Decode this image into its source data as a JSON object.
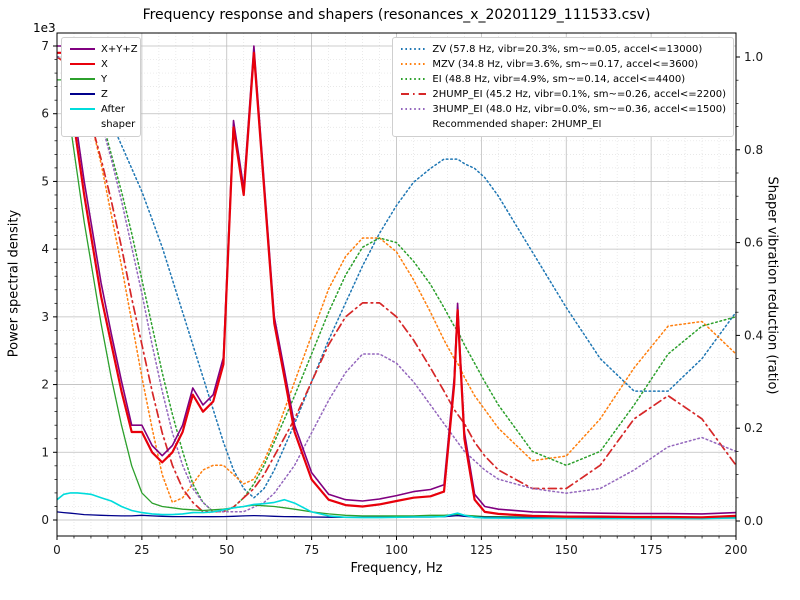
{
  "chart_data": {
    "type": "line",
    "title": "Frequency response and shapers (resonances_x_20201129_111533.csv)",
    "xlabel": "Frequency, Hz",
    "ylabel_left": "Power spectral density",
    "ylabel_right": "Shaper vibration reduction (ratio)",
    "y_offset_text": "1e3",
    "xlim": [
      0,
      200
    ],
    "ylim_left": [
      0,
      7000
    ],
    "ylim_right": [
      0,
      1.0
    ],
    "x_ticks": [
      0,
      25,
      50,
      75,
      100,
      125,
      150,
      175,
      200
    ],
    "y_ticks_left": [
      0,
      1,
      2,
      3,
      4,
      5,
      6,
      7
    ],
    "y_ticks_right": [
      0.0,
      0.2,
      0.4,
      0.6,
      0.8,
      1.0
    ],
    "x_major_step": 25,
    "x_minor_step": 5,
    "y_left_minor_step": 200,
    "y_right_minor_step": 0.05,
    "grid": "major+minor",
    "legend_position_left": "upper left",
    "legend_position_right": "upper right",
    "legend_note": "Recommended shaper: 2HUMP_EI",
    "x": [
      0,
      2,
      4,
      6,
      8,
      10,
      13,
      16,
      19,
      22,
      25,
      28,
      31,
      34,
      37,
      40,
      43,
      46,
      49,
      52,
      55,
      58,
      61,
      64,
      67,
      70,
      75,
      80,
      85,
      90,
      95,
      100,
      105,
      110,
      114,
      117,
      118,
      120,
      123,
      126,
      130,
      140,
      150,
      160,
      170,
      180,
      190,
      200
    ],
    "psd_series": [
      {
        "name": "X+Y+Z",
        "color": "#800080",
        "style": "solid",
        "width": 1.6,
        "axis": "left",
        "values": [
          7000,
          7000,
          6400,
          5700,
          5000,
          4400,
          3500,
          2750,
          2050,
          1400,
          1400,
          1100,
          950,
          1100,
          1400,
          1950,
          1700,
          1850,
          2400,
          5900,
          4900,
          7000,
          5000,
          3000,
          2200,
          1400,
          700,
          380,
          300,
          280,
          310,
          360,
          420,
          450,
          520,
          2100,
          3200,
          1300,
          380,
          200,
          160,
          120,
          110,
          100,
          95,
          95,
          90,
          110
        ]
      },
      {
        "name": "X",
        "color": "#e8000b",
        "style": "solid",
        "width": 2.2,
        "axis": "left",
        "values": [
          6900,
          6900,
          6200,
          5500,
          4800,
          4200,
          3300,
          2600,
          1900,
          1300,
          1300,
          1000,
          850,
          1000,
          1300,
          1850,
          1600,
          1750,
          2300,
          5800,
          4800,
          6900,
          4900,
          2900,
          2100,
          1300,
          600,
          300,
          220,
          200,
          230,
          280,
          330,
          350,
          420,
          2000,
          3100,
          1200,
          300,
          120,
          90,
          60,
          50,
          50,
          45,
          45,
          40,
          60
        ]
      },
      {
        "name": "Y",
        "color": "#2ca02c",
        "style": "solid",
        "width": 1.3,
        "axis": "left",
        "values": [
          6500,
          6500,
          5800,
          5100,
          4400,
          3800,
          2900,
          2100,
          1400,
          800,
          400,
          250,
          200,
          180,
          160,
          150,
          140,
          150,
          160,
          180,
          200,
          220,
          210,
          200,
          180,
          160,
          120,
          90,
          70,
          60,
          60,
          60,
          60,
          70,
          70,
          80,
          80,
          70,
          60,
          50,
          50,
          45,
          40,
          35,
          35,
          35,
          35,
          35
        ]
      },
      {
        "name": "Z",
        "color": "#00008b",
        "style": "solid",
        "width": 1.3,
        "axis": "left",
        "values": [
          120,
          110,
          100,
          90,
          80,
          75,
          70,
          65,
          60,
          60,
          70,
          60,
          55,
          50,
          50,
          50,
          48,
          48,
          50,
          55,
          60,
          65,
          60,
          55,
          50,
          48,
          45,
          42,
          40,
          40,
          40,
          42,
          45,
          45,
          48,
          60,
          65,
          55,
          45,
          40,
          38,
          35,
          32,
          30,
          30,
          30,
          30,
          30
        ]
      },
      {
        "name": "After shaper",
        "color": "#00dcdc",
        "style": "solid",
        "width": 1.6,
        "axis": "left",
        "values": [
          300,
          380,
          400,
          400,
          390,
          380,
          330,
          280,
          200,
          140,
          110,
          90,
          80,
          80,
          90,
          110,
          110,
          120,
          150,
          180,
          200,
          230,
          240,
          260,
          300,
          250,
          120,
          60,
          40,
          35,
          35,
          40,
          45,
          45,
          50,
          90,
          100,
          70,
          40,
          30,
          28,
          25,
          25,
          22,
          22,
          22,
          20,
          30
        ]
      }
    ],
    "shaper_series": [
      {
        "name": "ZV (57.8 Hz, vibr=20.3%, sm~=0.05, accel<=13000)",
        "color": "#1f77b4",
        "style": "dotted",
        "width": 1.5,
        "axis": "right",
        "values": [
          1.0,
          1.0,
          0.99,
          0.98,
          0.96,
          0.94,
          0.9,
          0.86,
          0.81,
          0.76,
          0.71,
          0.65,
          0.59,
          0.52,
          0.45,
          0.38,
          0.31,
          0.24,
          0.17,
          0.11,
          0.07,
          0.05,
          0.07,
          0.11,
          0.16,
          0.21,
          0.3,
          0.39,
          0.47,
          0.55,
          0.62,
          0.68,
          0.73,
          0.76,
          0.78,
          0.78,
          0.78,
          0.77,
          0.76,
          0.74,
          0.7,
          0.58,
          0.46,
          0.35,
          0.28,
          0.28,
          0.35,
          0.45
        ]
      },
      {
        "name": "MZV (34.8 Hz, vibr=3.6%, sm~=0.17, accel<=3600)",
        "color": "#ff7f0e",
        "style": "dotted",
        "width": 1.5,
        "axis": "right",
        "values": [
          1.0,
          0.99,
          0.97,
          0.94,
          0.9,
          0.86,
          0.77,
          0.66,
          0.55,
          0.43,
          0.31,
          0.2,
          0.1,
          0.04,
          0.05,
          0.08,
          0.11,
          0.12,
          0.12,
          0.1,
          0.08,
          0.09,
          0.13,
          0.18,
          0.24,
          0.3,
          0.4,
          0.5,
          0.57,
          0.61,
          0.61,
          0.58,
          0.52,
          0.45,
          0.39,
          0.35,
          0.34,
          0.31,
          0.27,
          0.24,
          0.2,
          0.13,
          0.14,
          0.22,
          0.33,
          0.42,
          0.43,
          0.36
        ]
      },
      {
        "name": "EI (48.8 Hz, vibr=4.9%, sm~=0.14, accel<=4400)",
        "color": "#2ca02c",
        "style": "dotted",
        "width": 1.5,
        "axis": "right",
        "values": [
          1.0,
          1.0,
          0.99,
          0.97,
          0.95,
          0.92,
          0.87,
          0.79,
          0.71,
          0.62,
          0.52,
          0.42,
          0.32,
          0.23,
          0.15,
          0.08,
          0.04,
          0.02,
          0.02,
          0.03,
          0.05,
          0.08,
          0.12,
          0.17,
          0.22,
          0.27,
          0.36,
          0.45,
          0.53,
          0.59,
          0.61,
          0.6,
          0.56,
          0.51,
          0.46,
          0.42,
          0.41,
          0.38,
          0.34,
          0.3,
          0.25,
          0.15,
          0.12,
          0.15,
          0.25,
          0.36,
          0.42,
          0.44
        ]
      },
      {
        "name": "2HUMP_EI (45.2 Hz, vibr=0.1%, sm~=0.26, accel<=2200)",
        "color": "#d62728",
        "style": "dashdot",
        "width": 1.7,
        "axis": "right",
        "values": [
          1.0,
          0.99,
          0.97,
          0.94,
          0.9,
          0.86,
          0.78,
          0.69,
          0.59,
          0.48,
          0.38,
          0.28,
          0.19,
          0.12,
          0.07,
          0.04,
          0.02,
          0.02,
          0.02,
          0.03,
          0.05,
          0.07,
          0.1,
          0.14,
          0.18,
          0.22,
          0.3,
          0.38,
          0.44,
          0.47,
          0.47,
          0.44,
          0.39,
          0.33,
          0.28,
          0.24,
          0.23,
          0.21,
          0.17,
          0.14,
          0.11,
          0.07,
          0.07,
          0.12,
          0.22,
          0.27,
          0.22,
          0.12
        ]
      },
      {
        "name": "3HUMP_EI (48.0 Hz, vibr=0.0%, sm~=0.36, accel<=1500)",
        "color": "#9467bd",
        "style": "dotted",
        "width": 1.5,
        "axis": "right",
        "values": [
          1.0,
          1.0,
          0.99,
          0.97,
          0.95,
          0.92,
          0.86,
          0.78,
          0.69,
          0.59,
          0.49,
          0.38,
          0.28,
          0.19,
          0.12,
          0.07,
          0.04,
          0.02,
          0.02,
          0.02,
          0.02,
          0.03,
          0.04,
          0.06,
          0.09,
          0.12,
          0.19,
          0.26,
          0.32,
          0.36,
          0.36,
          0.34,
          0.3,
          0.25,
          0.21,
          0.18,
          0.17,
          0.15,
          0.13,
          0.11,
          0.09,
          0.07,
          0.06,
          0.07,
          0.11,
          0.16,
          0.18,
          0.15
        ]
      }
    ]
  }
}
